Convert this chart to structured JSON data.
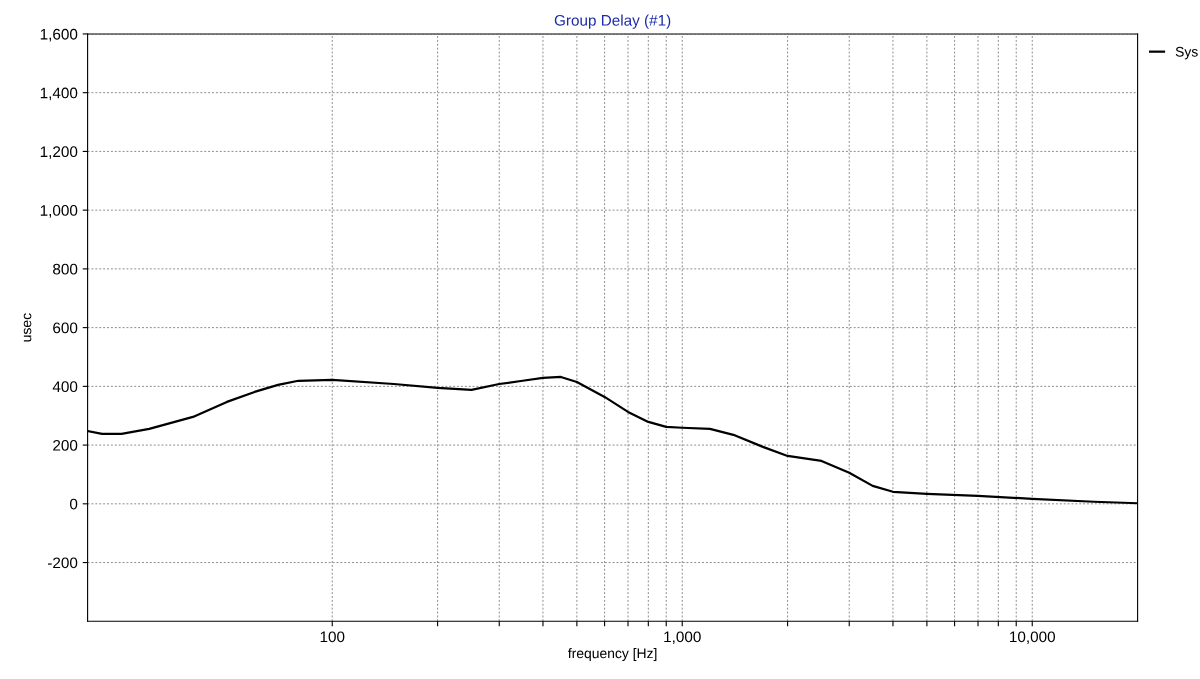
{
  "chart_data": {
    "type": "line",
    "title": "Group Delay (#1)",
    "xlabel": "frequency [Hz]",
    "ylabel": "usec",
    "log": "x",
    "x": [
      20,
      22,
      25,
      30,
      40,
      50,
      60,
      70,
      80,
      100,
      150,
      200,
      250,
      300,
      350,
      400,
      450,
      500,
      600,
      700,
      800,
      900,
      1000,
      1200,
      1400,
      1700,
      2000,
      2500,
      3000,
      3500,
      4000,
      5000,
      7000,
      10000,
      15000,
      20000
    ],
    "series": [
      {
        "name": "Sys",
        "color": "#000000",
        "values": [
          248,
          238,
          238,
          255,
          296,
          347,
          381,
          405,
          419,
          422,
          408,
          395,
          388,
          408,
          419,
          429,
          432,
          415,
          364,
          313,
          279,
          262,
          259,
          255,
          235,
          194,
          163,
          146,
          106,
          61,
          41,
          34,
          27,
          17,
          7,
          2
        ]
      }
    ],
    "xlim": [
      20,
      20000
    ],
    "xticks": [
      {
        "value": 100,
        "label": "100"
      },
      {
        "value": 200,
        "label": null
      },
      {
        "value": 300,
        "label": null
      },
      {
        "value": 400,
        "label": null
      },
      {
        "value": 500,
        "label": null
      },
      {
        "value": 600,
        "label": null
      },
      {
        "value": 700,
        "label": null
      },
      {
        "value": 800,
        "label": null
      },
      {
        "value": 900,
        "label": null
      },
      {
        "value": 1000,
        "label": "1,000"
      },
      {
        "value": 2000,
        "label": null
      },
      {
        "value": 3000,
        "label": null
      },
      {
        "value": 4000,
        "label": null
      },
      {
        "value": 5000,
        "label": null
      },
      {
        "value": 6000,
        "label": null
      },
      {
        "value": 7000,
        "label": null
      },
      {
        "value": 8000,
        "label": null
      },
      {
        "value": 9000,
        "label": null
      },
      {
        "value": 10000,
        "label": "10,000"
      }
    ],
    "ylim": [
      -400,
      1600
    ],
    "yticks": [
      -200,
      0,
      200,
      400,
      600,
      800,
      {
        "value": 1000,
        "label": "1,000"
      },
      {
        "value": 1200,
        "label": "1,200"
      },
      {
        "value": 1400,
        "label": "1,400"
      },
      {
        "value": 1600,
        "label": "1,600"
      }
    ],
    "grid": true,
    "legend": "top right",
    "line_style": "solid",
    "marker": "none"
  }
}
